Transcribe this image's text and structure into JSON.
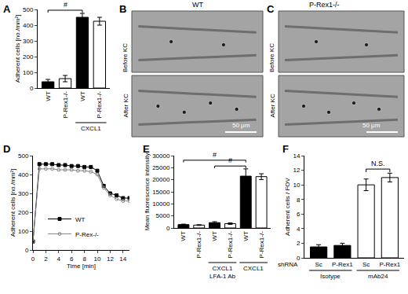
{
  "chart_data": [
    {
      "label": "A",
      "type": "bar",
      "categories": [
        "WT",
        "P-Rex1-/-",
        "WT",
        "P-Rex1-/-"
      ],
      "group_labels": [
        null,
        null,
        "CXCL1",
        "CXCL1"
      ],
      "values": [
        40,
        60,
        450,
        425
      ],
      "errors": [
        15,
        20,
        25,
        25
      ],
      "colors": [
        "#000000",
        "#ffffff",
        "#000000",
        "#ffffff"
      ],
      "y_label": "Adherent cells [no./mm²]",
      "ylim": [
        0,
        500
      ],
      "yticks": [
        0,
        100,
        200,
        300,
        400,
        500
      ],
      "grid": false,
      "significance": [
        {
          "text": "#",
          "between": [
            0,
            2
          ]
        }
      ]
    },
    {
      "label": "B",
      "type": "image",
      "title": "WT",
      "frames": [
        "Before KC",
        "After KC"
      ],
      "scale_bar": "50 μm"
    },
    {
      "label": "C",
      "type": "image",
      "title": "P-Rex1-/-",
      "frames": [
        "Before KC",
        "After KC"
      ],
      "scale_bar": "50 μm"
    },
    {
      "label": "D",
      "type": "line",
      "x": [
        0,
        1,
        2,
        3,
        4,
        5,
        6,
        7,
        8,
        9,
        10,
        11,
        12,
        13,
        14,
        15
      ],
      "series": [
        {
          "name": "WT",
          "color": "#000000",
          "marker": "square",
          "line_style": "solid",
          "values": [
            45,
            455,
            455,
            455,
            450,
            450,
            445,
            445,
            440,
            440,
            420,
            340,
            300,
            290,
            275,
            275
          ]
        },
        {
          "name": "P-Rex-/-",
          "color": "#888888",
          "marker": "circle-open",
          "line_style": "solid",
          "values": [
            45,
            430,
            430,
            430,
            425,
            425,
            425,
            420,
            420,
            415,
            400,
            330,
            290,
            270,
            260,
            260
          ]
        }
      ],
      "x_label": "Time [min]",
      "y_label": "Adherent cells [no./mm²]",
      "xlim": [
        0,
        15
      ],
      "xticks": [
        0,
        2,
        4,
        6,
        8,
        10,
        12,
        14
      ],
      "ylim": [
        0,
        500
      ],
      "yticks": [
        0,
        100,
        200,
        300,
        400,
        500
      ],
      "grid": false,
      "legend": "lower left"
    },
    {
      "label": "E",
      "type": "bar",
      "categories": [
        "WT",
        "P-Rex1-/-",
        "WT",
        "P-Rex1-/-",
        "WT",
        "P-Rex1-/-"
      ],
      "group_labels": [
        null,
        null,
        "CXCL1\nLFA-1 Ab",
        "CXCL1\nLFA-1 Ab",
        "CXCL1",
        "CXCL1"
      ],
      "values": [
        1400,
        1200,
        2200,
        1800,
        21500,
        21300
      ],
      "errors": [
        200,
        150,
        400,
        300,
        3000,
        1200
      ],
      "colors": [
        "#000000",
        "#ffffff",
        "#000000",
        "#ffffff",
        "#000000",
        "#ffffff"
      ],
      "y_label": "Mean fluorescence intensity",
      "ylim": [
        0,
        30000
      ],
      "yticks": [
        0,
        5000,
        10000,
        15000,
        20000,
        25000,
        30000
      ],
      "grid": false,
      "significance": [
        {
          "text": "#",
          "between": [
            0,
            4
          ]
        },
        {
          "text": "#",
          "between": [
            2,
            4
          ]
        }
      ]
    },
    {
      "label": "F",
      "type": "bar",
      "categories": [
        "Sc",
        "P-Rex1",
        "Sc",
        "P-Rex1"
      ],
      "group_labels": [
        "Isotype",
        "Isotype",
        "mAb24",
        "mAb24"
      ],
      "x_label": "shRNA",
      "values": [
        1.5,
        1.7,
        10,
        11
      ],
      "errors": [
        0.3,
        0.3,
        0.8,
        0.6
      ],
      "colors": [
        "#000000",
        "#000000",
        "#ffffff",
        "#ffffff"
      ],
      "y_label": "Adherent cells / FOV",
      "ylim": [
        0,
        14
      ],
      "yticks": [
        0,
        2,
        4,
        6,
        8,
        10,
        12,
        14
      ],
      "grid": false,
      "significance": [
        {
          "text": "N.S.",
          "between": [
            2,
            3
          ]
        }
      ]
    }
  ]
}
